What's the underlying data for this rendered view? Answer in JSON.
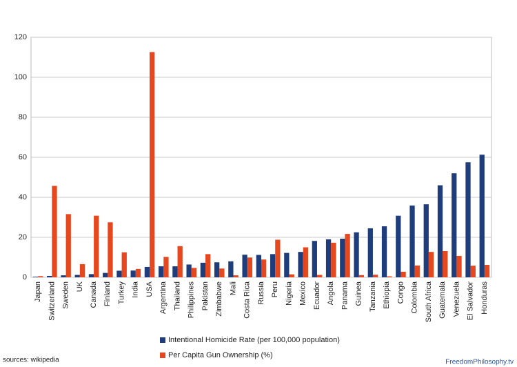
{
  "chart_data": {
    "type": "bar",
    "categories": [
      "Japan",
      "Switzerland",
      "Sweden",
      "UK",
      "Canada",
      "Finland",
      "Turkey",
      "India",
      "USA",
      "Argentina",
      "Thailand",
      "Philippines",
      "Pakistan",
      "Zimbabwe",
      "Mali",
      "Costa Rica",
      "Russia",
      "Peru",
      "Nigeria",
      "Mexico",
      "Ecuador",
      "Angola",
      "Panama",
      "Guinea",
      "Tanzania",
      "Ethiopia",
      "Congo",
      "Colombia",
      "South Africa",
      "Guatemala",
      "Venezuela",
      "El Salvador",
      "Honduras"
    ],
    "series": [
      {
        "name": "Intentional Homicide Rate (per 100,000 population)",
        "color": "#1f3d7a",
        "values": [
          0.3,
          0.7,
          1.0,
          1.2,
          1.6,
          2.2,
          3.3,
          3.4,
          5.2,
          5.5,
          5.5,
          6.4,
          7.3,
          7.5,
          8.0,
          11.3,
          11.2,
          11.6,
          12.2,
          12.7,
          18.2,
          19.0,
          19.3,
          22.5,
          24.5,
          25.5,
          30.8,
          35.9,
          36.5,
          46.0,
          52.0,
          57.5,
          61.3
        ]
      },
      {
        "name": "Per Capita Gun Ownership (%)",
        "color": "#e5471f",
        "values": [
          0.6,
          45.7,
          31.6,
          6.6,
          30.8,
          27.5,
          12.5,
          4.2,
          112.6,
          10.2,
          15.6,
          4.7,
          11.6,
          4.4,
          1.0,
          9.9,
          8.9,
          18.8,
          1.5,
          15.0,
          1.2,
          17.3,
          21.7,
          1.1,
          1.3,
          0.5,
          2.8,
          5.9,
          12.7,
          13.1,
          10.7,
          5.8,
          6.2
        ]
      }
    ],
    "ylim": [
      0,
      120
    ],
    "yticks": [
      0,
      20,
      40,
      60,
      80,
      100,
      120
    ],
    "grid": true,
    "source": "sources: wikipedia",
    "watermark": "FreedomPhilosophy.tv"
  }
}
